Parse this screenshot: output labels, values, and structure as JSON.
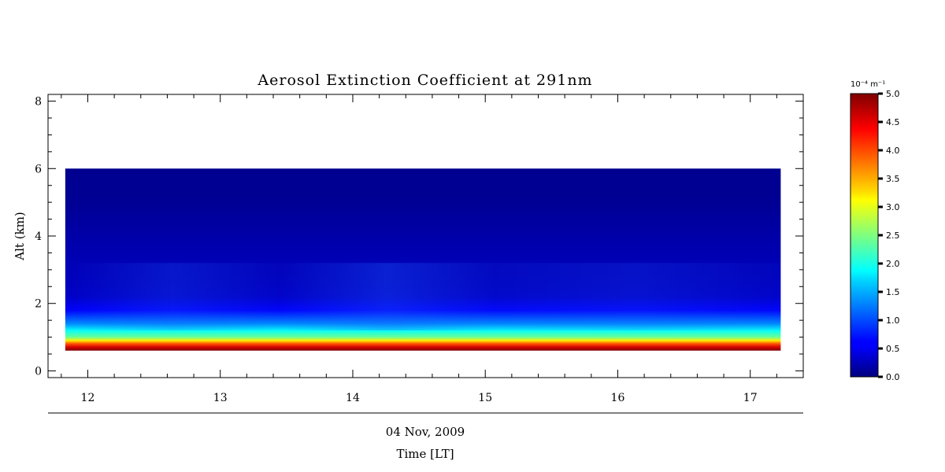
{
  "chart_data": {
    "type": "heatmap",
    "title": "Aerosol Extinction Coefficient at 291nm",
    "xlabel": "Time [LT]",
    "date_label": "04 Nov, 2009",
    "ylabel": "Alt (km)",
    "xlim": [
      11.7,
      17.4
    ],
    "ylim": [
      -0.2,
      8.2
    ],
    "xticks": [
      12,
      13,
      14,
      15,
      16,
      17
    ],
    "yticks": [
      0,
      2,
      4,
      6,
      8
    ],
    "data_x_range": [
      11.83,
      17.23
    ],
    "data_y_range": [
      0.6,
      6.0
    ],
    "colorbar": {
      "unit": "10⁻⁴ m⁻¹",
      "range": [
        0.0,
        5.0
      ],
      "ticks": [
        "0.0",
        "0.5",
        "1.0",
        "1.5",
        "2.0",
        "2.5",
        "3.0",
        "3.5",
        "4.0",
        "4.5",
        "5.0"
      ],
      "colormap": "jet"
    },
    "profile": {
      "altitude_km": [
        0.6,
        0.7,
        0.8,
        0.9,
        1.0,
        1.2,
        1.4,
        1.8,
        2.2,
        2.6,
        3.0,
        4.0,
        5.0,
        6.0
      ],
      "extinction": [
        5.0,
        4.6,
        4.0,
        3.2,
        2.4,
        1.9,
        1.3,
        0.6,
        0.35,
        0.3,
        0.28,
        0.2,
        0.1,
        0.08
      ]
    },
    "grid": false
  }
}
